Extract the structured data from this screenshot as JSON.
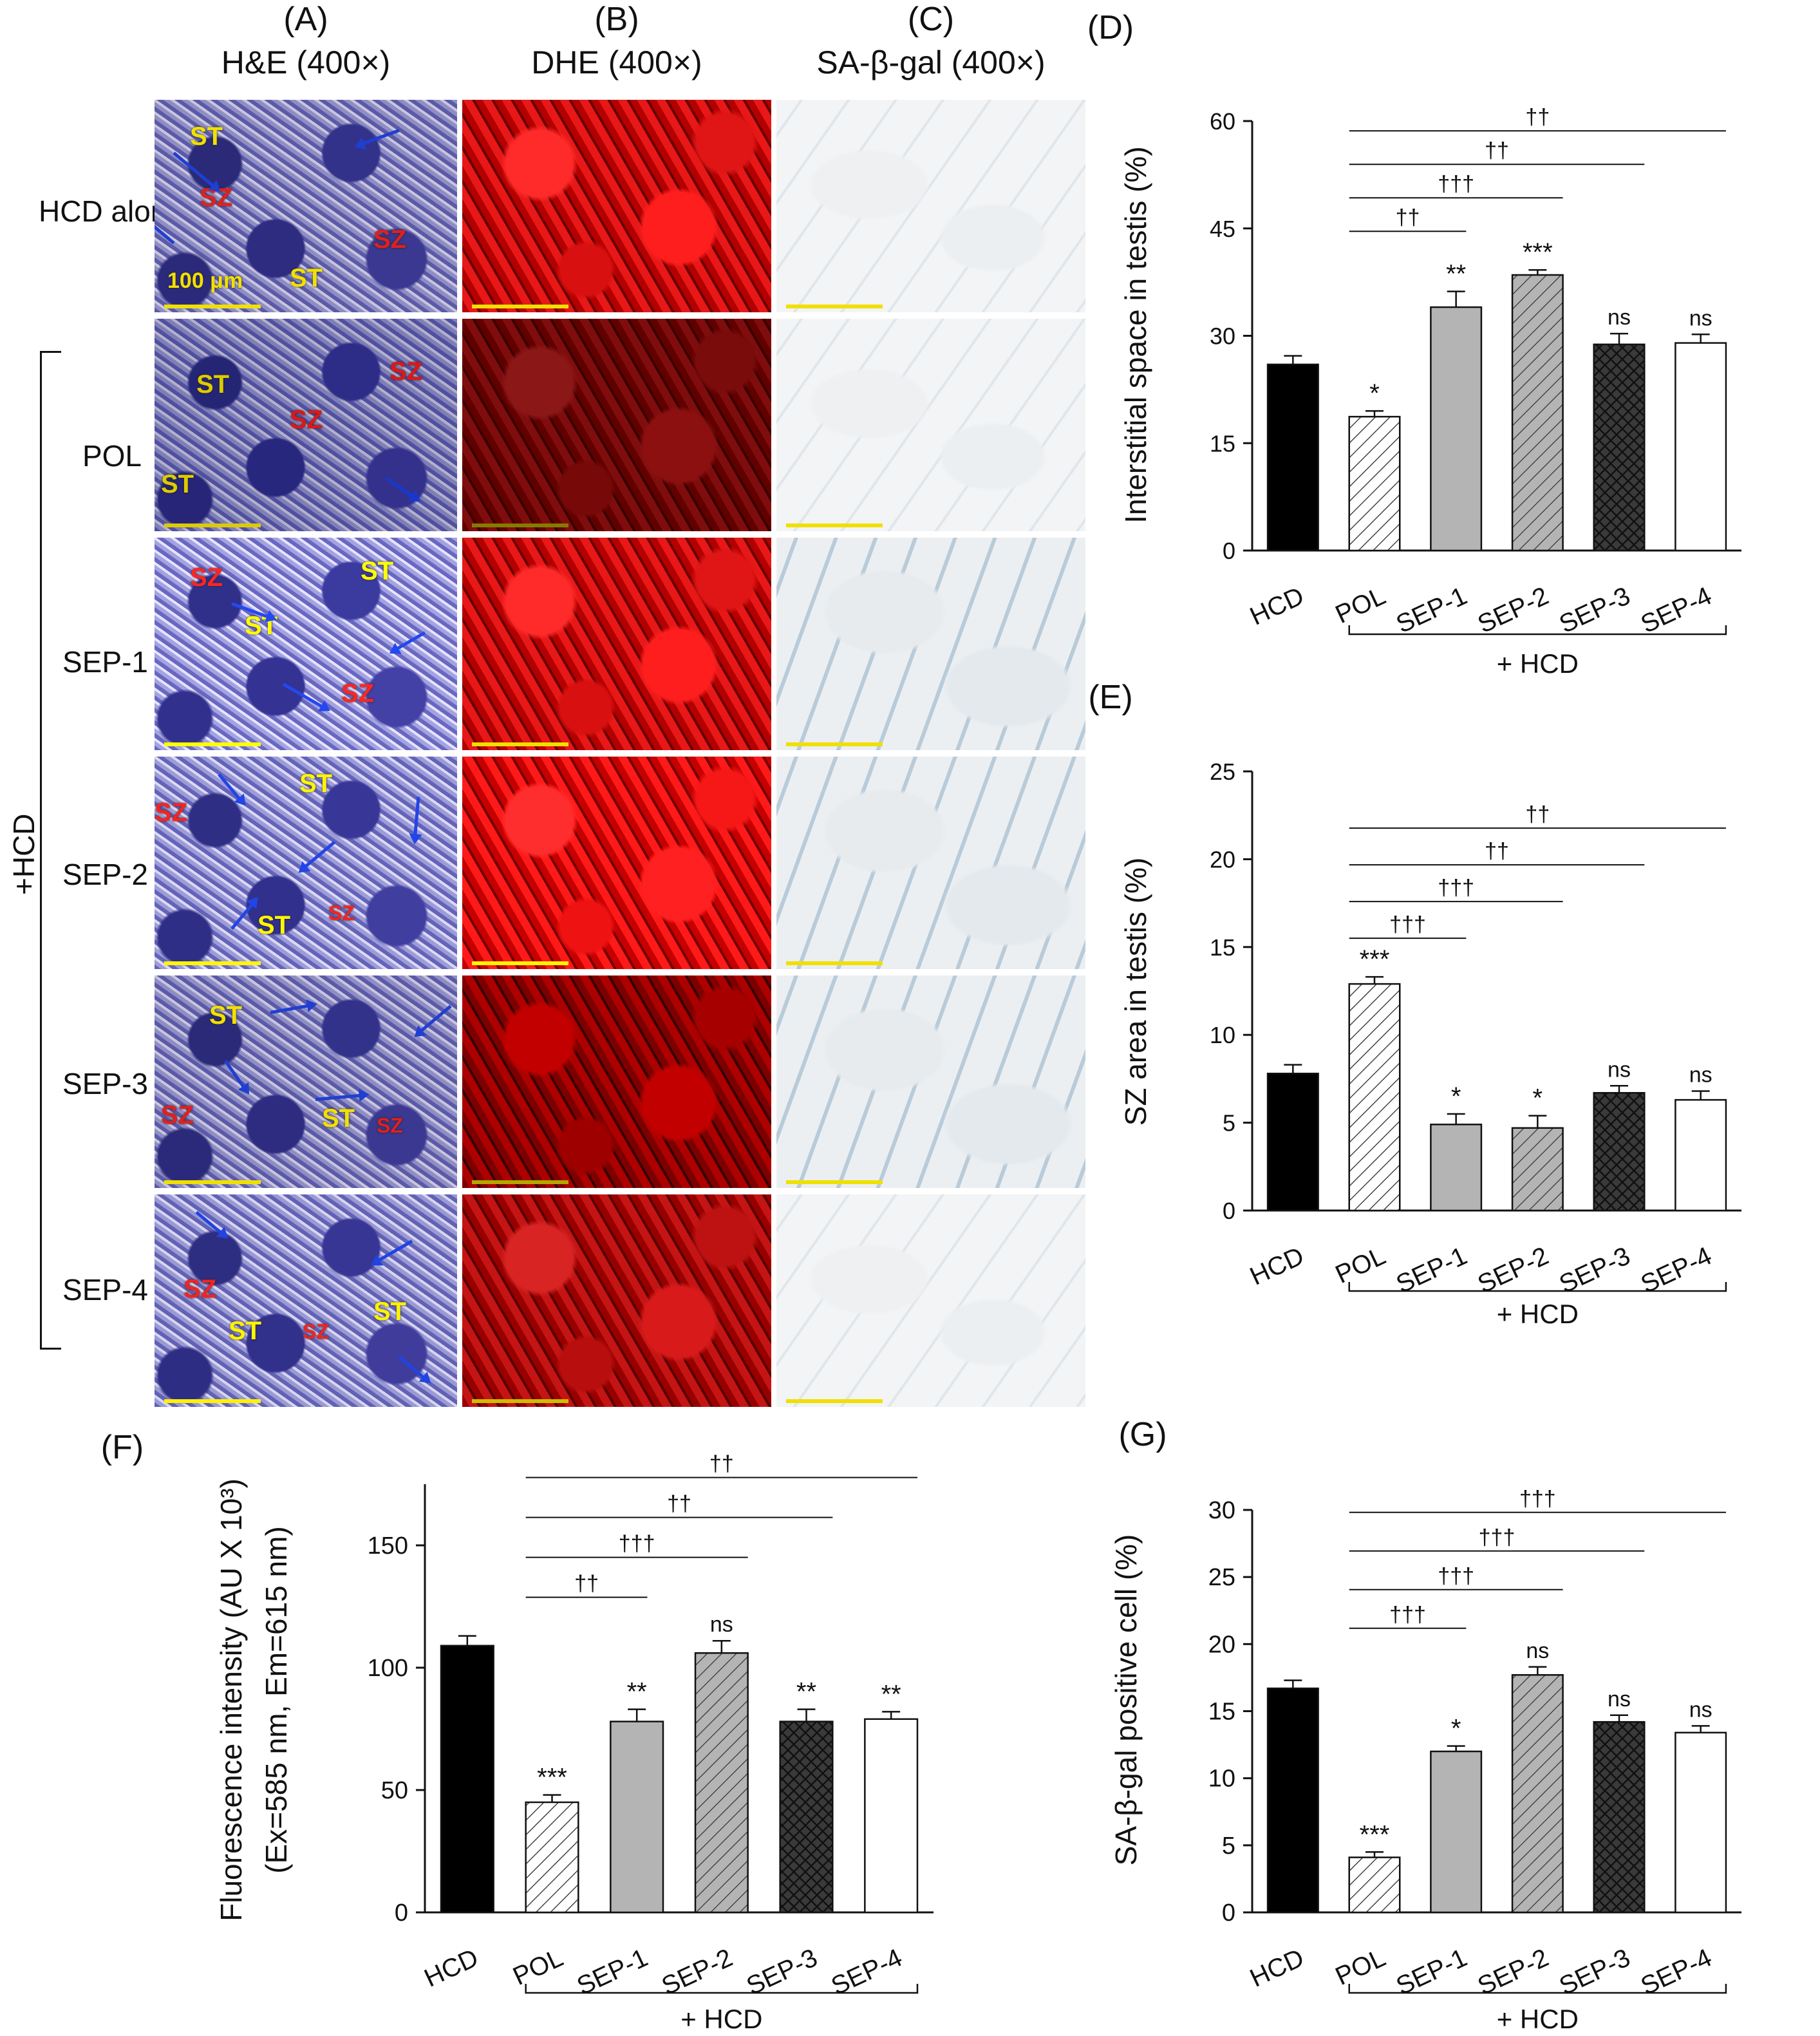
{
  "micro": {
    "columns": [
      {
        "letter": "(A)",
        "title": "H&E (400×)"
      },
      {
        "letter": "(B)",
        "title": "DHE (400×)"
      },
      {
        "letter": "(C)",
        "title": "SA-β-gal (400×)"
      }
    ],
    "rows": [
      "HCD alone",
      "POL",
      "SEP-1",
      "SEP-2",
      "SEP-3",
      "SEP-4"
    ],
    "group_label": "+HCD",
    "scale_label": "100 μm",
    "st": "ST",
    "sz": "SZ"
  },
  "colors": {
    "black": "#000000",
    "light_gray": "#b4b4b4",
    "mid_gray": "#b9b9b9",
    "dark_gray": "#3a3a3a",
    "white": "#ffffff"
  },
  "chart_data": [
    {
      "id": "D",
      "letter": "(D)",
      "type": "bar",
      "categories": [
        "HCD",
        "POL",
        "SEP-1",
        "SEP-2",
        "SEP-3",
        "SEP-4"
      ],
      "values": [
        26,
        18.7,
        34,
        38.5,
        28.8,
        29
      ],
      "errors": [
        1.2,
        0.8,
        2.2,
        0.7,
        1.5,
        1.2
      ],
      "ylabel": "Interstitial space in testis (%)",
      "yticks": [
        "0",
        "15",
        "30",
        "45",
        "60"
      ],
      "ylim": [
        0,
        60
      ],
      "annotations": [
        "",
        "*",
        "**",
        "***",
        "ns",
        "ns"
      ],
      "group_label": "+ HCD",
      "comparisons": [
        {
          "from": "POL",
          "to": "SEP-1",
          "label": "††"
        },
        {
          "from": "POL",
          "to": "SEP-2",
          "label": "†††"
        },
        {
          "from": "POL",
          "to": "SEP-3",
          "label": "††"
        },
        {
          "from": "POL",
          "to": "SEP-4",
          "label": "††"
        }
      ]
    },
    {
      "id": "E",
      "letter": "(E)",
      "type": "bar",
      "categories": [
        "HCD",
        "POL",
        "SEP-1",
        "SEP-2",
        "SEP-3",
        "SEP-4"
      ],
      "values": [
        7.8,
        12.9,
        4.9,
        4.7,
        6.7,
        6.3
      ],
      "errors": [
        0.5,
        0.4,
        0.6,
        0.7,
        0.4,
        0.5
      ],
      "ylabel": "SZ area in testis (%)",
      "yticks": [
        "0",
        "5",
        "10",
        "15",
        "20",
        "25"
      ],
      "ylim": [
        0,
        25
      ],
      "annotations": [
        "",
        "***",
        "*",
        "*",
        "ns",
        "ns"
      ],
      "group_label": "+ HCD",
      "comparisons": [
        {
          "from": "POL",
          "to": "SEP-1",
          "label": "†††"
        },
        {
          "from": "POL",
          "to": "SEP-2",
          "label": "†††"
        },
        {
          "from": "POL",
          "to": "SEP-3",
          "label": "††"
        },
        {
          "from": "POL",
          "to": "SEP-4",
          "label": "††"
        }
      ]
    },
    {
      "id": "F",
      "letter": "(F)",
      "type": "bar",
      "categories": [
        "HCD",
        "POL",
        "SEP-1",
        "SEP-2",
        "SEP-3",
        "SEP-4"
      ],
      "values": [
        109,
        45,
        78,
        106,
        78,
        79
      ],
      "errors": [
        4,
        3,
        5,
        5,
        5,
        3
      ],
      "ylabel": "Fluorescence intensity (AU X 10³)",
      "ylabel2": "(Ex=585 nm, Em=615 nm)",
      "yticks": [
        "0",
        "50",
        "100",
        "150"
      ],
      "ylim": [
        0,
        175
      ],
      "annotations": [
        "",
        "***",
        "**",
        "ns",
        "**",
        "**"
      ],
      "group_label": "+ HCD",
      "comparisons": [
        {
          "from": "POL",
          "to": "SEP-1",
          "label": "††"
        },
        {
          "from": "POL",
          "to": "SEP-2",
          "label": "†††"
        },
        {
          "from": "POL",
          "to": "SEP-3",
          "label": "††"
        },
        {
          "from": "POL",
          "to": "SEP-4",
          "label": "††"
        }
      ]
    },
    {
      "id": "G",
      "letter": "(G)",
      "type": "bar",
      "categories": [
        "HCD",
        "POL",
        "SEP-1",
        "SEP-2",
        "SEP-3",
        "SEP-4"
      ],
      "values": [
        16.7,
        4.1,
        12,
        17.7,
        14.2,
        13.4
      ],
      "errors": [
        0.6,
        0.4,
        0.4,
        0.6,
        0.5,
        0.5
      ],
      "ylabel": "SA-β-gal positive cell (%)",
      "yticks": [
        "0",
        "5",
        "10",
        "15",
        "20",
        "25",
        "30"
      ],
      "ylim": [
        0,
        30
      ],
      "annotations": [
        "",
        "***",
        "*",
        "ns",
        "ns",
        "ns"
      ],
      "group_label": "+ HCD",
      "comparisons": [
        {
          "from": "POL",
          "to": "SEP-1",
          "label": "†††"
        },
        {
          "from": "POL",
          "to": "SEP-2",
          "label": "†††"
        },
        {
          "from": "POL",
          "to": "SEP-3",
          "label": "†††"
        },
        {
          "from": "POL",
          "to": "SEP-4",
          "label": "†††"
        }
      ]
    }
  ]
}
